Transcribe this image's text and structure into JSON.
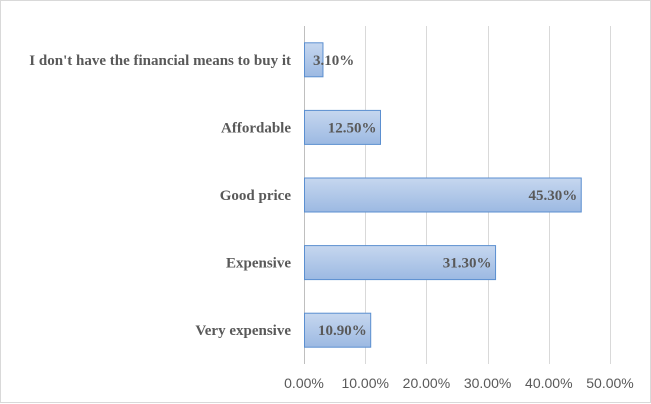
{
  "chart_data": {
    "type": "bar",
    "orientation": "horizontal",
    "title": "",
    "xlabel": "",
    "ylabel": "",
    "categories": [
      "I don't have the financial means to buy it",
      "Affordable",
      "Good price",
      "Expensive",
      "Very expensive"
    ],
    "values": [
      3.1,
      12.5,
      45.3,
      31.3,
      10.9
    ],
    "value_labels": [
      "3.10%",
      "12.50%",
      "45.30%",
      "31.30%",
      "10.90%"
    ],
    "xlim": [
      0,
      50
    ],
    "x_ticks": [
      0,
      10,
      20,
      30,
      40,
      50
    ],
    "x_tick_labels": [
      "0.00%",
      "10.00%",
      "20.00%",
      "30.00%",
      "40.00%",
      "50.00%"
    ],
    "grid": "vertical",
    "legend": "none",
    "colors": {
      "bar_top": "#c6d7ef",
      "bar_bottom": "#9cb9e2",
      "bar_stroke": "#5b8fd0",
      "text": "#595959",
      "grid": "#d9d9d9"
    }
  }
}
